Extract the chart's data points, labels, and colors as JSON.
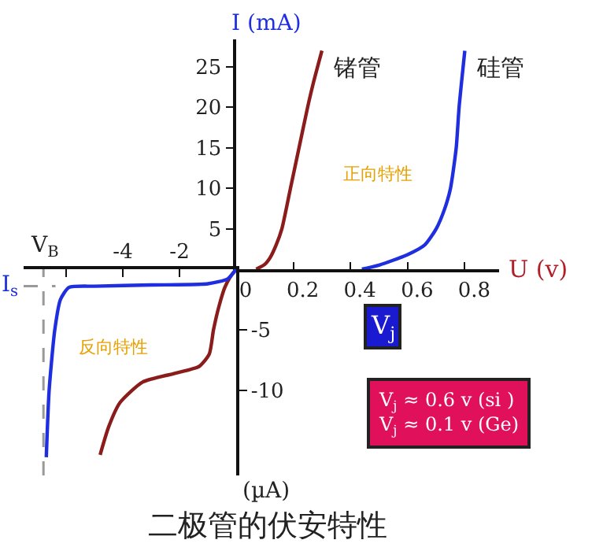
{
  "chart_data": [
    {
      "type": "line",
      "title": "二极管的伏安特性",
      "xlabel": "U (v)",
      "ylabel": "I (mA)",
      "xlim": [
        0,
        0.92
      ],
      "xticks": [
        {
          "value": 0,
          "label": "0"
        },
        0.2,
        0.4,
        0.6,
        0.8
      ],
      "ylim": [
        0,
        28.4
      ],
      "yticks": [
        5,
        10,
        15,
        20,
        25
      ],
      "legend": false,
      "marker": "none",
      "line_style": "solid",
      "series": [
        {
          "name": "锗管",
          "color": "#8b1c1c",
          "x": [
            0.07,
            0.1,
            0.12,
            0.14,
            0.16,
            0.19,
            0.22,
            0.25,
            0.27,
            0.3
          ],
          "values": [
            0,
            0.6,
            1.5,
            3,
            5,
            10,
            15,
            20,
            23,
            27
          ]
        },
        {
          "name": "硅管",
          "color": "#1f2fe0",
          "x": [
            0.44,
            0.5,
            0.6,
            0.66,
            0.7,
            0.73,
            0.75,
            0.77,
            0.78,
            0.8
          ],
          "values": [
            0,
            0.5,
            1.8,
            3,
            5,
            7.5,
            10,
            15,
            20,
            27
          ]
        }
      ],
      "annotations": [
        "正向特性",
        "V$_{j}$",
        "V$_{j}$ ≈ 0.6 v (si )\nV$_{j}$ ≈ 0.1 v (Ge)"
      ]
    },
    {
      "type": "line",
      "ylabel": "(µA)",
      "xlim": [
        -7.5,
        0
      ],
      "xticks": [
        {
          "value": -6,
          "label": null
        },
        -4,
        -2
      ],
      "ylim": [
        -17,
        0
      ],
      "yticks": [
        -5,
        -10
      ],
      "legend": false,
      "marker": "none",
      "line_style": "solid",
      "series": [
        {
          "color": "#8b1c1c",
          "x": [
            0,
            -0.2,
            -0.4,
            -0.6,
            -0.8,
            -0.95,
            -1.3,
            -2.2,
            -3.3,
            -4.1,
            -4.5,
            -4.8
          ],
          "values": [
            0,
            -0.6,
            -1.5,
            -3,
            -5,
            -7,
            -8,
            -8.6,
            -9.3,
            -11,
            -13,
            -15.3
          ]
        },
        {
          "color": "#1f2fe0",
          "x": [
            0,
            -0.3,
            -1,
            -3,
            -5,
            -5.9,
            -6.2,
            -6.4,
            -6.6,
            -6.7
          ],
          "values": [
            0,
            -0.8,
            -1.2,
            -1.3,
            -1.4,
            -1.5,
            -2.5,
            -5,
            -10,
            -15.5
          ]
        }
      ],
      "ref_lines": [
        {
          "axis": "x",
          "value": -6.8,
          "label": "V$_{B}$",
          "color": "#999999",
          "line_style": "dashed"
        },
        {
          "axis": "y",
          "value": -1.4,
          "label": "I$_{s}$",
          "color": "#999999",
          "line_style": "dashed"
        }
      ],
      "annotations": [
        "反向特性"
      ]
    }
  ]
}
